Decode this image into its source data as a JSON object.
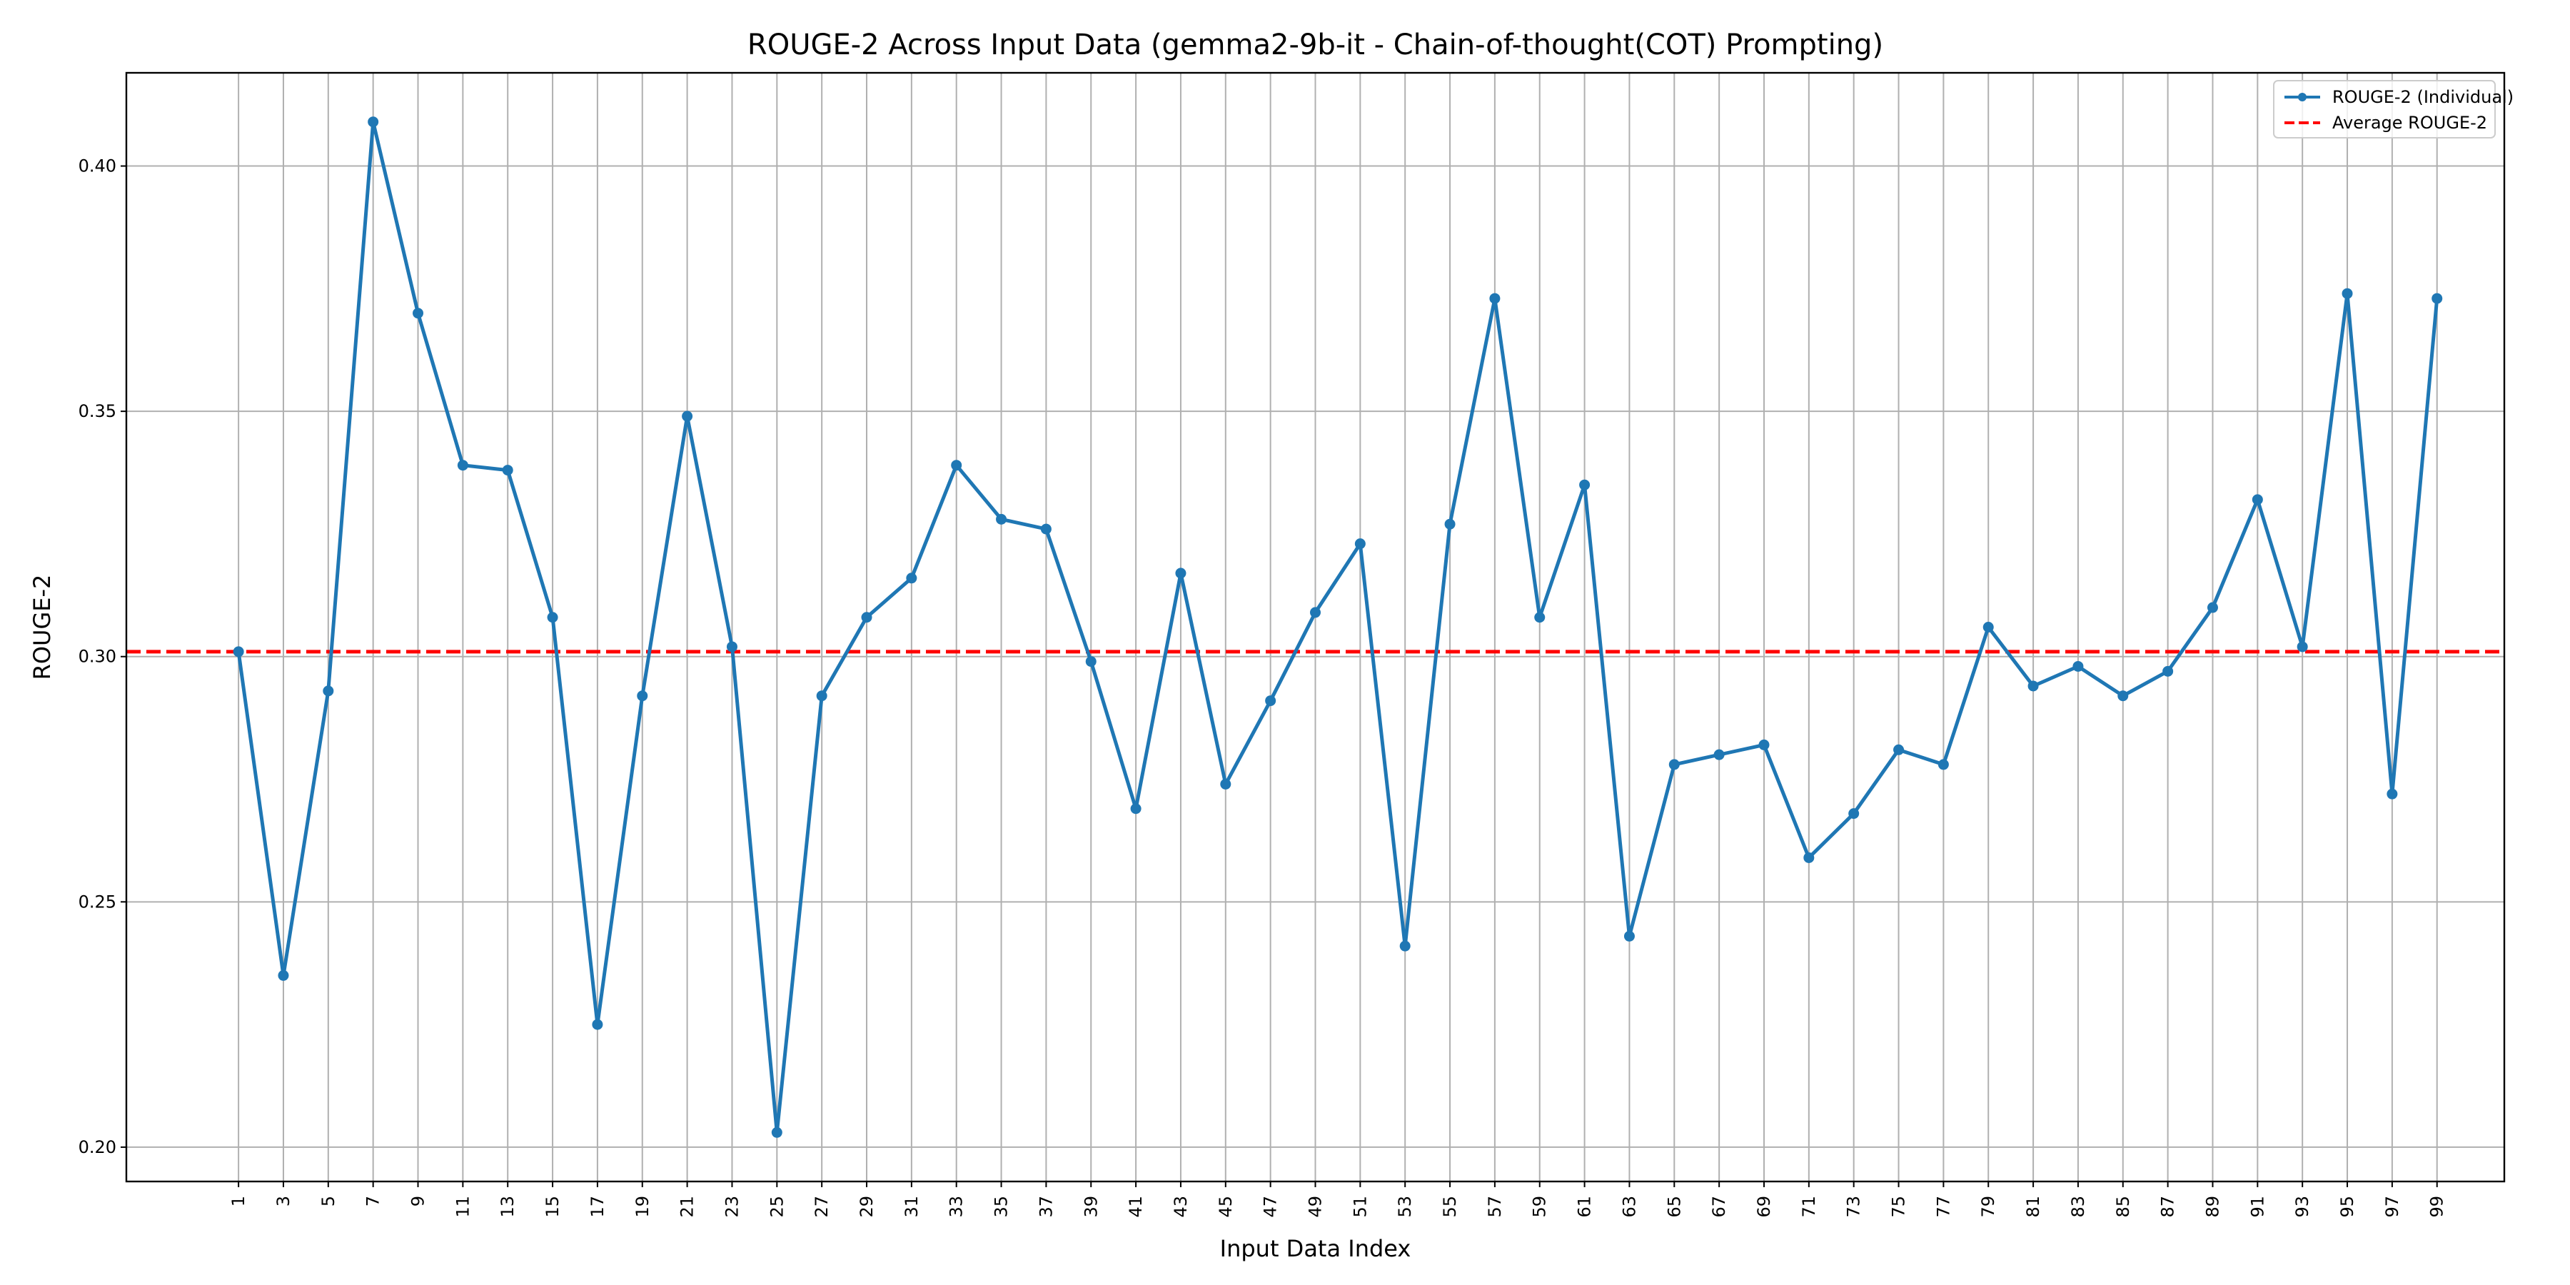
{
  "chart_data": {
    "type": "line",
    "title": "ROUGE-2 Across Input Data (gemma2-9b-it - Chain-of-thought(COT) Prompting)",
    "xlabel": "Input Data Index",
    "ylabel": "ROUGE-2",
    "x": [
      1,
      3,
      5,
      7,
      9,
      11,
      13,
      15,
      17,
      19,
      21,
      23,
      25,
      27,
      29,
      31,
      33,
      35,
      37,
      39,
      41,
      43,
      45,
      47,
      49,
      51,
      53,
      55,
      57,
      59,
      61,
      63,
      65,
      67,
      69,
      71,
      73,
      75,
      77,
      79,
      81,
      83,
      85,
      87,
      89,
      91,
      93,
      95,
      97,
      99
    ],
    "xticks": [
      1,
      3,
      5,
      7,
      9,
      11,
      13,
      15,
      17,
      19,
      21,
      23,
      25,
      27,
      29,
      31,
      33,
      35,
      37,
      39,
      41,
      43,
      45,
      47,
      49,
      51,
      53,
      55,
      57,
      59,
      61,
      63,
      65,
      67,
      69,
      71,
      73,
      75,
      77,
      79,
      81,
      83,
      85,
      87,
      89,
      91,
      93,
      95,
      97,
      99
    ],
    "xlim": [
      -4,
      102.0
    ],
    "ylim": [
      0.193,
      0.419
    ],
    "yticks": [
      0.2,
      0.25,
      0.3,
      0.35,
      0.4
    ],
    "ytick_labels": [
      "0.20",
      "0.25",
      "0.30",
      "0.35",
      "0.40"
    ],
    "grid": true,
    "legend_position": "top-right",
    "series": [
      {
        "name": "ROUGE-2 (Individual)",
        "color": "#1f77b4",
        "style": "solid-with-markers",
        "values": [
          0.301,
          0.235,
          0.293,
          0.409,
          0.37,
          0.339,
          0.338,
          0.308,
          0.225,
          0.292,
          0.349,
          0.302,
          0.203,
          0.292,
          0.308,
          0.316,
          0.339,
          0.328,
          0.326,
          0.299,
          0.269,
          0.317,
          0.274,
          0.291,
          0.309,
          0.323,
          0.241,
          0.327,
          0.373,
          0.308,
          0.335,
          0.243,
          0.278,
          0.28,
          0.282,
          0.259,
          0.268,
          0.281,
          0.278,
          0.306,
          0.294,
          0.298,
          0.292,
          0.297,
          0.31,
          0.332,
          0.302,
          0.374,
          0.272,
          0.373
        ]
      },
      {
        "name": "Average ROUGE-2",
        "color": "#ff0000",
        "style": "dashed",
        "value": 0.301
      }
    ]
  }
}
